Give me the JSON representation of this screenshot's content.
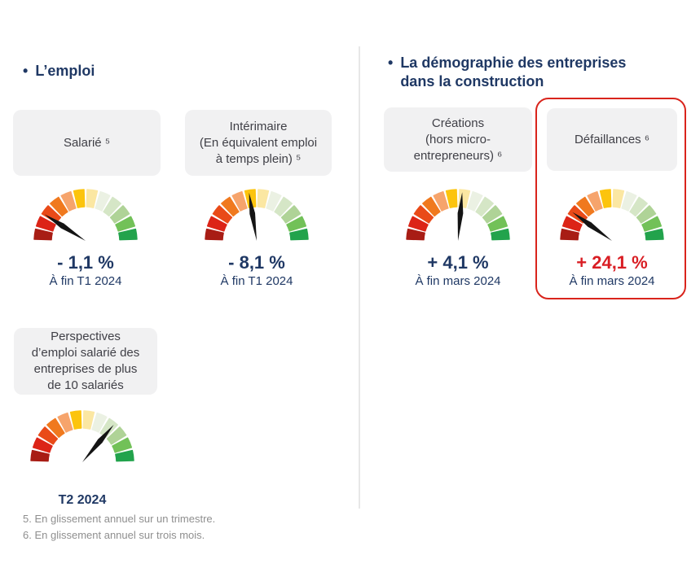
{
  "colors": {
    "heading_text": "#1f3864",
    "value_text": "#1f3864",
    "highlight_value_text": "#d91e24",
    "card_background": "#f1f1f2",
    "card_text": "#3f3f46",
    "footnote_text": "#8f8f8f",
    "divider": "#e7e7e7",
    "highlight_border": "#d9241c",
    "needle": "#141414"
  },
  "gauge_style": {
    "segments": 12,
    "arc_degrees": 180,
    "segment_colors": [
      "#a81d15",
      "#dc2417",
      "#e94a18",
      "#f0791e",
      "#f6a46c",
      "#fcc40d",
      "#fbe7a2",
      "#ebf1e3",
      "#d5e6c6",
      "#afd397",
      "#72c158",
      "#22a34c"
    ]
  },
  "left_section": {
    "bullet": "•",
    "title": "L’emploi"
  },
  "right_section": {
    "bullet": "•",
    "title_line1": "La démographie des entreprises",
    "title_line2": "dans la construction"
  },
  "chart_data": [
    {
      "type": "gauge",
      "card_lines": [
        "Salarié ⁵"
      ],
      "display": "- 1,1 %",
      "value_pct": -1.1,
      "period": "À fin T1 2024",
      "needle_angle_deg": -57,
      "highlighted": false
    },
    {
      "type": "gauge",
      "card_lines": [
        "Intérimaire",
        "(En équivalent emploi",
        "à temps plein) ⁵"
      ],
      "display": "- 8,1 %",
      "value_pct": -8.1,
      "period": "À fin T1 2024",
      "needle_angle_deg": -9,
      "highlighted": false
    },
    {
      "type": "gauge",
      "card_lines": [
        "Perspectives",
        "d’emploi salarié des",
        "entreprises de plus",
        "de 10 salariés"
      ],
      "display": "",
      "value_pct": null,
      "period": "T2 2024",
      "needle_angle_deg": 40,
      "highlighted": false
    },
    {
      "type": "gauge",
      "card_lines": [
        "Créations",
        "(hors micro-",
        "entrepreneurs) ⁶"
      ],
      "display": "+ 4,1 %",
      "value_pct": 4.1,
      "period": "À fin mars 2024",
      "needle_angle_deg": 5,
      "highlighted": false
    },
    {
      "type": "gauge",
      "card_lines": [
        "Défaillances ⁶"
      ],
      "display": "+ 24,1 %",
      "value_pct": 24.1,
      "period": "À fin mars 2024",
      "needle_angle_deg": -54,
      "highlighted": true
    }
  ],
  "footnotes": [
    "5. En glissement annuel sur un trimestre.",
    "6. En glissement annuel sur trois mois."
  ]
}
